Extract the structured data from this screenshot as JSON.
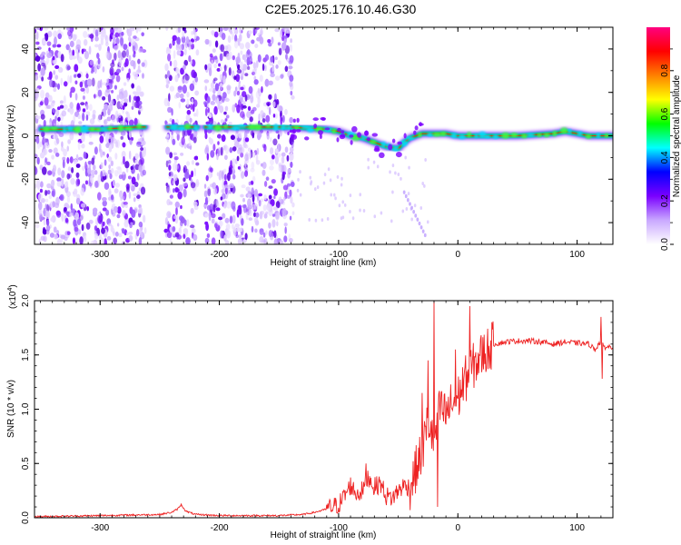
{
  "title": "C2E5.2025.176.10.46.G30",
  "chart_data": [
    {
      "type": "heatmap",
      "xlabel": "Height of straight line (km)",
      "ylabel": "Frequency (Hz)",
      "xlim": [
        -355,
        130
      ],
      "ylim": [
        -50,
        50
      ],
      "xticks": [
        -300,
        -200,
        -100,
        0,
        100
      ],
      "yticks": [
        -40,
        -20,
        0,
        20,
        40
      ],
      "colorbar": {
        "label": "Normalized spectral amplitude",
        "range": [
          0,
          1
        ],
        "ticks": [
          "0.0",
          "0.2",
          "0.4",
          "0.6",
          "0.8"
        ],
        "tick_values": [
          0,
          0.2,
          0.4,
          0.6,
          0.8
        ],
        "colors": [
          "#ffffff",
          "#c9a8ff",
          "#7a00ff",
          "#0000ff",
          "#00ffff",
          "#00ff00",
          "#ffff00",
          "#ff8000",
          "#ff0000",
          "#ff0080"
        ]
      },
      "noise_bands": [
        [
          -355,
          -262
        ],
        [
          -245,
          -218
        ],
        [
          -212,
          -138
        ]
      ],
      "ridge": {
        "x": [
          -350,
          -300,
          -270,
          -200,
          -140,
          -110,
          -100,
          -90,
          -80,
          -70,
          -60,
          -50,
          -45,
          -40,
          -35,
          -30,
          -25,
          -20,
          -10,
          0,
          20,
          50,
          80,
          90,
          100,
          110,
          120,
          130
        ],
        "freq": [
          3,
          3,
          4,
          4,
          4,
          3,
          2,
          0,
          -1,
          -3,
          -5,
          -6,
          -3,
          -1,
          0,
          1,
          1,
          1,
          1,
          0,
          0,
          0,
          1,
          2,
          1,
          0,
          0,
          0
        ]
      },
      "colors": {
        "ridge_core": "#ff2000",
        "ridge_mid": "#00d000",
        "ridge_outer": "#00c8ff",
        "ridge_halo": "#7a00ff",
        "noise": "#6a00ee"
      }
    },
    {
      "type": "line",
      "xlabel": "Height of straight line (km)",
      "ylabel": "SNR (10 * v/v)",
      "y_multiplier_label": "(x10",
      "y_multiplier_exp": "4",
      "y_multiplier_close": ")",
      "xlim": [
        -355,
        130
      ],
      "ylim": [
        0,
        2.0
      ],
      "xticks": [
        -300,
        -200,
        -100,
        0,
        100
      ],
      "yticks": [
        "0.0",
        "0.5",
        "1.0",
        "1.5",
        "2.0"
      ],
      "ytick_values": [
        0,
        0.5,
        1.0,
        1.5,
        2.0
      ],
      "series": [
        {
          "color": "#ee2222",
          "x": [
            -355,
            -300,
            -250,
            -240,
            -235,
            -232,
            -228,
            -220,
            -200,
            -180,
            -150,
            -130,
            -120,
            -110,
            -100,
            -95,
            -90,
            -85,
            -80,
            -75,
            -70,
            -65,
            -60,
            -55,
            -50,
            -45,
            -40,
            -35,
            -30,
            -25,
            -20,
            -15,
            -10,
            -5,
            0,
            5,
            10,
            20,
            30,
            40,
            50,
            60,
            70,
            80,
            90,
            100,
            110,
            115,
            118,
            120,
            122,
            125,
            130
          ],
          "y": [
            0.01,
            0.02,
            0.03,
            0.05,
            0.08,
            0.12,
            0.06,
            0.03,
            0.02,
            0.02,
            0.02,
            0.03,
            0.05,
            0.08,
            0.12,
            0.2,
            0.3,
            0.22,
            0.25,
            0.38,
            0.28,
            0.32,
            0.2,
            0.18,
            0.25,
            0.3,
            0.28,
            0.45,
            0.6,
            0.9,
            0.7,
            1.0,
            0.95,
            1.05,
            1.1,
            1.25,
            1.35,
            1.5,
            1.6,
            1.62,
            1.63,
            1.63,
            1.62,
            1.6,
            1.62,
            1.61,
            1.6,
            1.55,
            1.6,
            1.62,
            1.58,
            1.57,
            1.58
          ]
        }
      ],
      "spikes": [
        [
          -20,
          2.0
        ],
        [
          -17,
          0.1
        ],
        [
          10,
          1.95
        ],
        [
          8,
          1.2
        ],
        [
          -2,
          1.55
        ],
        [
          -25,
          1.45
        ],
        [
          -30,
          1.15
        ],
        [
          120,
          1.85
        ],
        [
          121,
          1.28
        ],
        [
          -77,
          0.5
        ]
      ]
    }
  ]
}
